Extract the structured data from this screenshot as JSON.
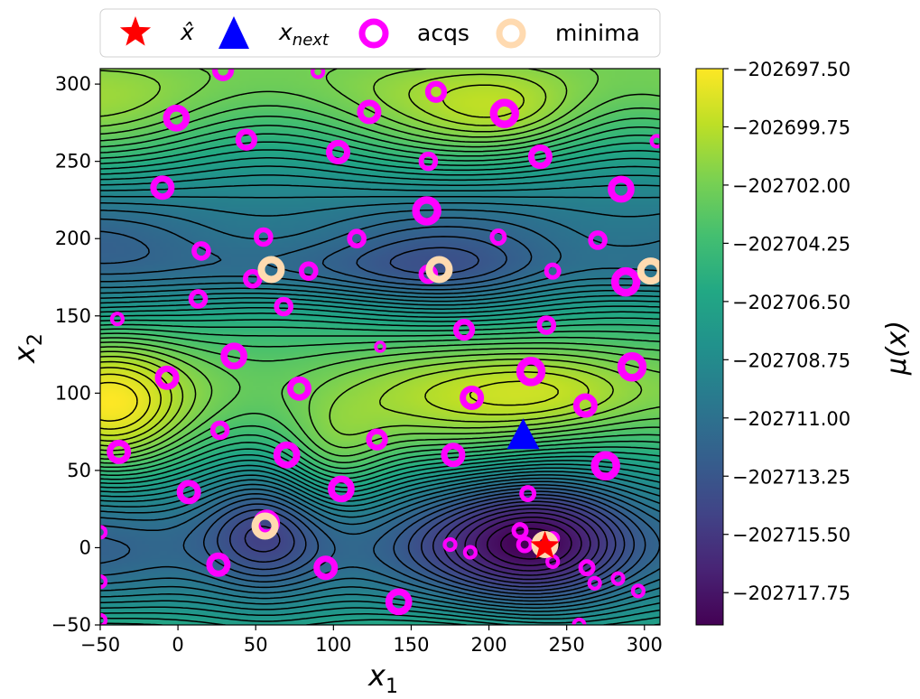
{
  "chart_data": {
    "type": "scatter",
    "background": "contour-map",
    "xlabel": "x",
    "xlabel_sub": "1",
    "ylabel": "x",
    "ylabel_sub": "2",
    "xlim": [
      -50,
      310
    ],
    "ylim": [
      -50,
      310
    ],
    "xticks": [
      -50,
      0,
      50,
      100,
      150,
      200,
      250,
      300
    ],
    "yticks": [
      -50,
      0,
      50,
      100,
      150,
      200,
      250,
      300
    ],
    "xtick_labels": [
      "−50",
      "0",
      "50",
      "100",
      "150",
      "200",
      "250",
      "300"
    ],
    "ytick_labels": [
      "−50",
      "0",
      "50",
      "100",
      "150",
      "200",
      "250",
      "300"
    ],
    "legend": {
      "placement": "top-center-outside",
      "entries": [
        {
          "id": "xhat",
          "label": "x̂",
          "marker": "star",
          "color": "#ff0000"
        },
        {
          "id": "xnext",
          "label": "x",
          "label_sub": "next",
          "marker": "triangle",
          "color": "#0000ff"
        },
        {
          "id": "acqs",
          "label": "acqs",
          "marker": "ring",
          "color": "#ff00ff"
        },
        {
          "id": "minima",
          "label": "minima",
          "marker": "ring",
          "color": "#ffdab0"
        }
      ]
    },
    "colorbar": {
      "label": "μ(x)",
      "colormap": "viridis",
      "range": [
        -202719.0,
        -202697.5
      ],
      "ticks": [
        -202697.5,
        -202699.75,
        -202702.0,
        -202704.25,
        -202706.5,
        -202708.75,
        -202711.0,
        -202713.25,
        -202715.5,
        -202717.75
      ],
      "tick_labels": [
        "−202697.50",
        "−202699.75",
        "−202702.00",
        "−202704.25",
        "−202706.50",
        "−202708.75",
        "−202711.00",
        "−202713.25",
        "−202715.50",
        "−202717.75"
      ]
    },
    "series": [
      {
        "name": "acqs",
        "color": "#ff00ff",
        "points": [
          [
            -50,
            10,
            0.6
          ],
          [
            -50,
            -22,
            0.6
          ],
          [
            -50,
            -47,
            0.6
          ],
          [
            -39,
            148,
            0.6
          ],
          [
            -38,
            62,
            1.0
          ],
          [
            -10,
            233,
            1.0
          ],
          [
            -7,
            110,
            1.0
          ],
          [
            -1,
            278,
            1.1
          ],
          [
            7,
            36,
            1.0
          ],
          [
            13,
            161,
            0.8
          ],
          [
            15,
            192,
            0.8
          ],
          [
            26,
            -11,
            1.0
          ],
          [
            27,
            76,
            0.8
          ],
          [
            29,
            309,
            0.9
          ],
          [
            36,
            124,
            1.1
          ],
          [
            44,
            264,
            0.9
          ],
          [
            48,
            174,
            0.8
          ],
          [
            55,
            201,
            0.8
          ],
          [
            57,
            16,
            1.1
          ],
          [
            68,
            156,
            0.8
          ],
          [
            70,
            60,
            1.1
          ],
          [
            78,
            103,
            1.0
          ],
          [
            84,
            179,
            0.8
          ],
          [
            95,
            -13,
            1.0
          ],
          [
            103,
            256,
            1.0
          ],
          [
            105,
            38,
            1.1
          ],
          [
            115,
            200,
            0.8
          ],
          [
            123,
            282,
            1.0
          ],
          [
            128,
            70,
            0.9
          ],
          [
            130,
            130,
            0.5
          ],
          [
            142,
            -35,
            1.1
          ],
          [
            160,
            218,
            1.2
          ],
          [
            161,
            250,
            0.8
          ],
          [
            161,
            177,
            0.8
          ],
          [
            166,
            295,
            0.9
          ],
          [
            175,
            2,
            0.6
          ],
          [
            177,
            60,
            1.0
          ],
          [
            184,
            141,
            0.9
          ],
          [
            189,
            97,
            1.0
          ],
          [
            188,
            -3,
            0.6
          ],
          [
            206,
            201,
            0.7
          ],
          [
            210,
            281,
            1.2
          ],
          [
            220,
            11,
            0.7
          ],
          [
            223,
            2,
            0.7
          ],
          [
            225,
            35,
            0.7
          ],
          [
            227,
            114,
            1.2
          ],
          [
            233,
            253,
            1.0
          ],
          [
            237,
            144,
            0.8
          ],
          [
            241,
            179,
            0.7
          ],
          [
            241,
            -9,
            0.6
          ],
          [
            241,
            6,
            0.6
          ],
          [
            262,
            92,
            1.0
          ],
          [
            263,
            -13,
            0.7
          ],
          [
            268,
            -23,
            0.6
          ],
          [
            270,
            199,
            0.8
          ],
          [
            275,
            53,
            1.2
          ],
          [
            283,
            -20,
            0.6
          ],
          [
            285,
            232,
            1.1
          ],
          [
            288,
            172,
            1.2
          ],
          [
            292,
            117,
            1.2
          ],
          [
            296,
            -28,
            0.6
          ],
          [
            308,
            263,
            0.6
          ],
          [
            258,
            -50,
            0.6
          ],
          [
            90,
            308,
            0.6
          ]
        ]
      },
      {
        "name": "minima",
        "color": "#ffdab0",
        "points": [
          [
            56,
            14
          ],
          [
            60,
            180
          ],
          [
            168,
            180
          ],
          [
            304,
            179
          ],
          [
            236,
            2
          ]
        ]
      },
      {
        "name": "x_hat",
        "color": "#ff0000",
        "points": [
          [
            236,
            1
          ]
        ]
      },
      {
        "name": "x_next",
        "color": "#0000ff",
        "points": [
          [
            222,
            72
          ]
        ]
      }
    ]
  }
}
